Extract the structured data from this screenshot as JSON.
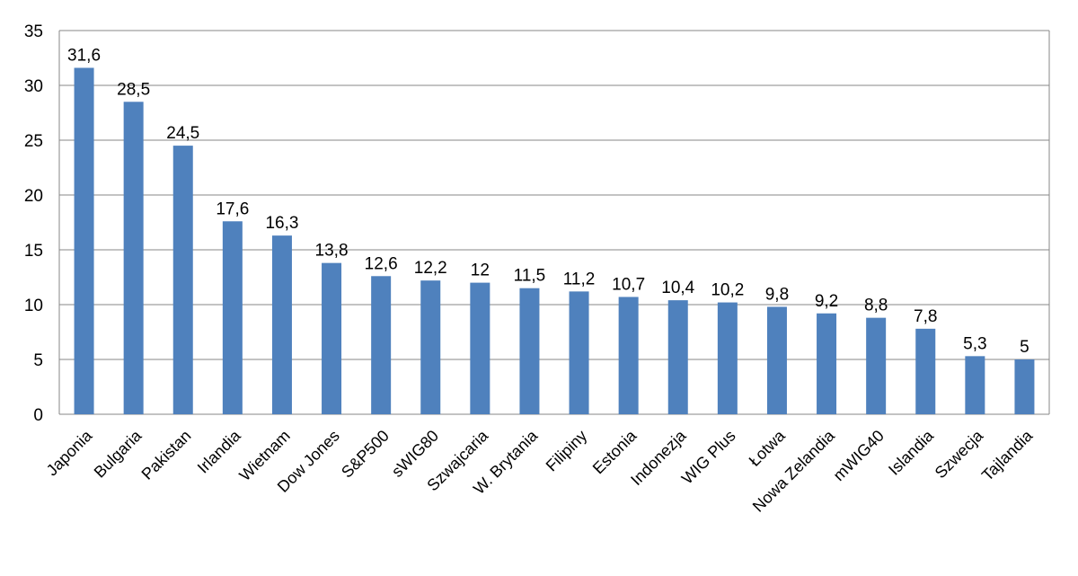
{
  "chart_data": {
    "type": "bar",
    "categories": [
      "Japonia",
      "Bulgaria",
      "Pakistan",
      "Irlandia",
      "Wietnam",
      "Dow Jones",
      "S&P500",
      "sWIG80",
      "Szwajcaria",
      "W. Brytania",
      "Filipiny",
      "Estonia",
      "Indonezja",
      "WIG Plus",
      "Łotwa",
      "Nowa Zelandia",
      "mWIG40",
      "Islandia",
      "Szwecja",
      "Tajlandia"
    ],
    "values": [
      31.6,
      28.5,
      24.5,
      17.6,
      16.3,
      13.8,
      12.6,
      12.2,
      12,
      11.5,
      11.2,
      10.7,
      10.4,
      10.2,
      9.8,
      9.2,
      8.8,
      7.8,
      5.3,
      5
    ],
    "data_labels": [
      "31,6",
      "28,5",
      "24,5",
      "17,6",
      "16,3",
      "13,8",
      "12,6",
      "12,2",
      "12",
      "11,5",
      "11,2",
      "10,7",
      "10,4",
      "10,2",
      "9,8",
      "9,2",
      "8,8",
      "7,8",
      "5,3",
      "5"
    ],
    "ylim": [
      0,
      35
    ],
    "yticks": [
      "0",
      "5",
      "10",
      "15",
      "20",
      "25",
      "30",
      "35"
    ],
    "grid": true,
    "bar_color": "#4f81bd",
    "grid_color": "#878787"
  }
}
